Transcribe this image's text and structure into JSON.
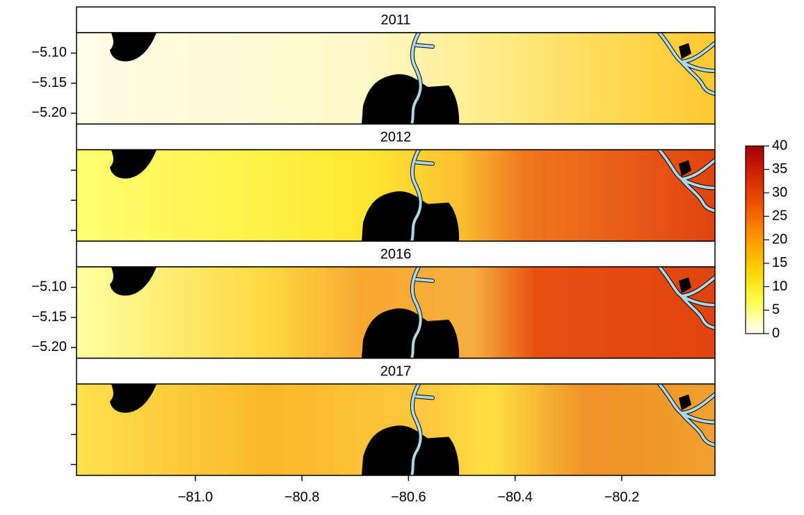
{
  "chart_data": {
    "type": "raster-panels",
    "panels": [
      "2011",
      "2012",
      "2016",
      "2017"
    ],
    "xlim": [
      -81.223,
      -80.025
    ],
    "ylim": [
      -5.218,
      -5.066
    ],
    "xticks": [
      {
        "value": -81.0,
        "label": "−81.0"
      },
      {
        "value": -80.8,
        "label": "−80.8"
      },
      {
        "value": -80.6,
        "label": "−80.6"
      },
      {
        "value": -80.4,
        "label": "−80.4"
      },
      {
        "value": -80.2,
        "label": "−80.2"
      }
    ],
    "yticks": [
      {
        "value": -5.1,
        "label": "−5.10"
      },
      {
        "value": -5.15,
        "label": "−5.15"
      },
      {
        "value": -5.2,
        "label": "−5.20"
      }
    ],
    "colorbar": {
      "lim": [
        0,
        40
      ],
      "ticks": [
        0,
        5,
        10,
        15,
        20,
        25,
        30,
        35,
        40
      ],
      "colors": [
        "#ffffff",
        "#ffff50",
        "#ffd400",
        "#ff9a00",
        "#f05a00",
        "#d82800",
        "#a00000"
      ]
    }
  }
}
